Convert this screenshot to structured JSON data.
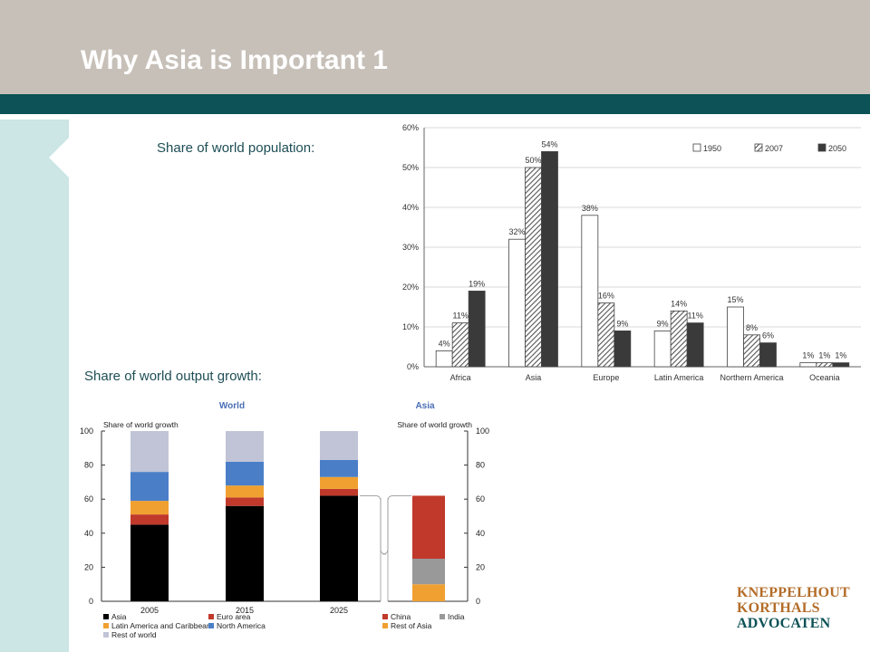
{
  "slide": {
    "title": "Why Asia is Important 1",
    "caption_population": "Share of world population:",
    "caption_growth": "Share of world output growth:"
  },
  "logo": {
    "line1": "KNEPPELHOUT",
    "line2": "KORTHALS",
    "line3": "ADVOCATEN"
  },
  "colors": {
    "header": "#c7c0b8",
    "rule": "#0c5257",
    "side": "#cce5e5",
    "asia": "#000000",
    "euro_area": "#c0392b",
    "latam": "#f0a030",
    "north_america": "#4a7fc8",
    "rest_of_world": "#c0c4d6",
    "china": "#c0392b",
    "india": "#999999",
    "rest_of_asia": "#f0a030"
  },
  "chart_data": [
    {
      "type": "bar",
      "categories": [
        "Africa",
        "Asia",
        "Europe",
        "Latin America",
        "Northern America",
        "Oceania"
      ],
      "series": [
        {
          "name": "1950",
          "values": [
            4,
            32,
            38,
            9,
            15,
            1
          ],
          "labels": [
            "4%",
            "32%",
            "38%",
            "9%",
            "15%",
            "1%"
          ]
        },
        {
          "name": "2007",
          "values": [
            11,
            50,
            16,
            14,
            8,
            1
          ],
          "labels": [
            "11%",
            "50%",
            "16%",
            "14%",
            "8%",
            "1%"
          ]
        },
        {
          "name": "2050",
          "values": [
            19,
            54,
            9,
            11,
            6,
            1
          ],
          "labels": [
            "19%",
            "54%",
            "9%",
            "11%",
            "6%",
            "1%"
          ]
        }
      ],
      "yticks": [
        "0%",
        "10%",
        "20%",
        "30%",
        "40%",
        "50%",
        "60%"
      ],
      "ylim": [
        0,
        60
      ],
      "grid": true,
      "legend": "top-right"
    },
    {
      "type": "bar",
      "stacked": true,
      "panels": [
        "World",
        "Asia"
      ],
      "ylabel_left": "Share of world growth",
      "ylabel_right": "Share of world growth",
      "yticks": [
        "0",
        "20",
        "40",
        "60",
        "80",
        "100"
      ],
      "ylim": [
        0,
        100
      ],
      "categories": [
        "2005",
        "2015",
        "2025"
      ],
      "series": [
        {
          "name": "Asia",
          "values": [
            45,
            56,
            62
          ]
        },
        {
          "name": "Euro area",
          "values": [
            6,
            5,
            4
          ]
        },
        {
          "name": "Latin America and Caribbean",
          "values": [
            8,
            7,
            7
          ]
        },
        {
          "name": "North America",
          "values": [
            17,
            14,
            10
          ]
        },
        {
          "name": "Rest of world",
          "values": [
            24,
            18,
            17
          ]
        }
      ],
      "asia_breakdown": [
        {
          "name": "Rest of Asia",
          "value": 10
        },
        {
          "name": "India",
          "value": 15
        },
        {
          "name": "China",
          "value": 37
        }
      ],
      "legend": "bottom"
    }
  ]
}
